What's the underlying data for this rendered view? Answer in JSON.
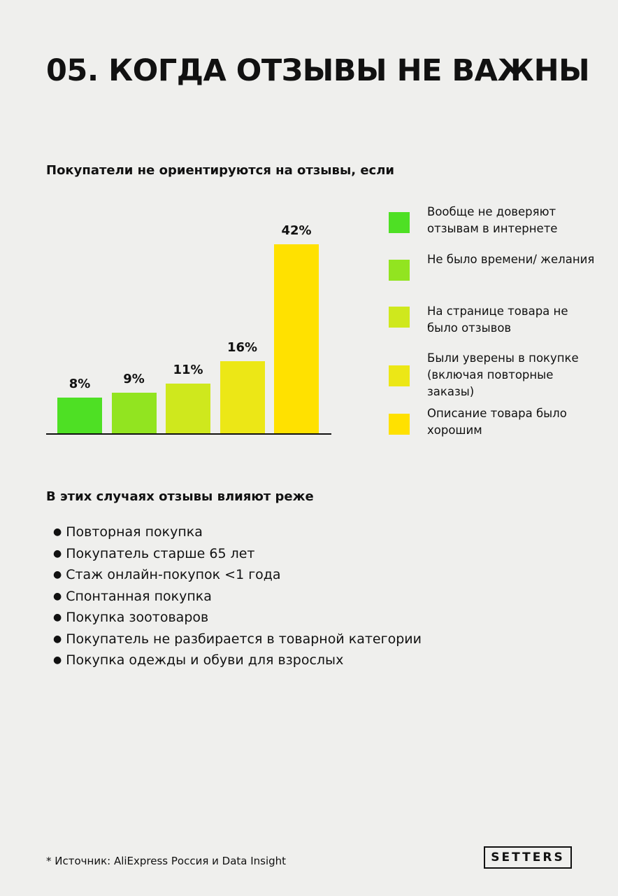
{
  "header": {
    "title": "05. КОГДА ОТЗЫВЫ НЕ ВАЖНЫ"
  },
  "chart_data": {
    "type": "bar",
    "title": "Покупатели не ориентируются на отзывы, если",
    "categories": [
      "Вообще не доверяют отзывам в интернете",
      "Не было времени/ желания",
      "На странице товара не было отзывов",
      "Были уверены в покупке (включая повторные заказы)",
      "Описание товара было хорошим"
    ],
    "values": [
      8,
      9,
      11,
      16,
      42
    ],
    "value_labels": [
      "8%",
      "9%",
      "11%",
      "16%",
      "42%"
    ],
    "colors": [
      "#4ee024",
      "#92e420",
      "#cfe81d",
      "#ece716",
      "#ffe100"
    ]
  },
  "list": {
    "title": "В этих случаях отзывы влияют реже",
    "items": [
      "Повторная покупка",
      "Покупатель старше 65 лет",
      "Стаж онлайн-покупок <1 года",
      "Спонтанная покупка",
      "Покупка зоотоваров",
      "Покупатель не разбирается в товарной категории",
      "Покупка одежды и обуви для взрослых"
    ]
  },
  "footer": {
    "source": "* Источник: AliExpress Россия и Data Insight",
    "logo": "SETTERS"
  }
}
